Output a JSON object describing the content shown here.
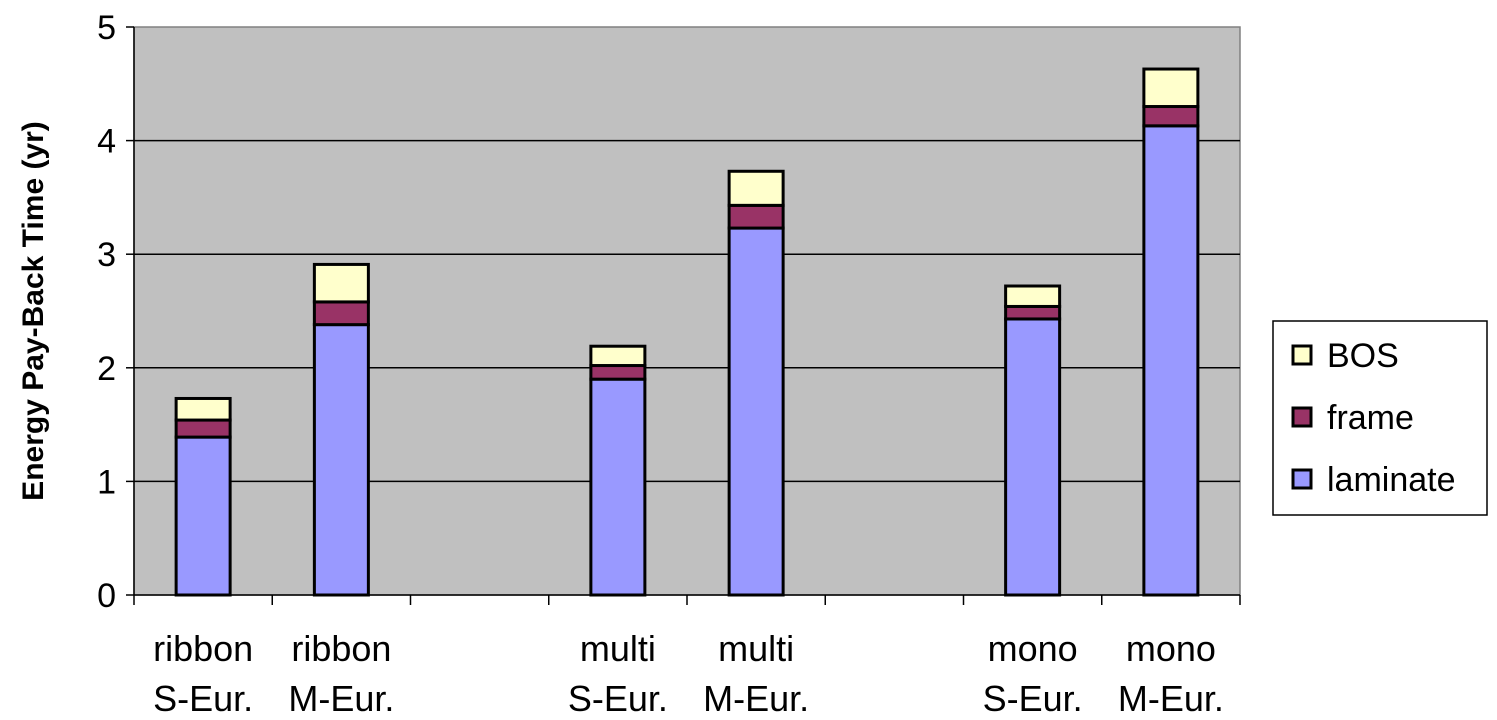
{
  "chart_data": {
    "type": "bar",
    "stacked": true,
    "ylabel": "Energy Pay-Back Time (yr)",
    "xlabel": "",
    "ylim": [
      0,
      5
    ],
    "yticks": [
      "0",
      "1",
      "2",
      "3",
      "4",
      "5"
    ],
    "grid": true,
    "legend_position": "right",
    "categories": [
      {
        "line1": "ribbon",
        "line2": "S-Eur."
      },
      {
        "line1": "ribbon",
        "line2": "M-Eur."
      },
      {
        "line1": "multi",
        "line2": "S-Eur."
      },
      {
        "line1": "multi",
        "line2": "M-Eur."
      },
      {
        "line1": "mono",
        "line2": "S-Eur."
      },
      {
        "line1": "mono",
        "line2": "M-Eur."
      }
    ],
    "series": [
      {
        "name": "laminate",
        "color": "#9999ff",
        "values": [
          1.39,
          2.38,
          1.9,
          3.23,
          2.43,
          4.13
        ]
      },
      {
        "name": "frame",
        "color": "#993366",
        "values": [
          0.15,
          0.2,
          0.12,
          0.2,
          0.11,
          0.17
        ]
      },
      {
        "name": "BOS",
        "color": "#ffffcc",
        "values": [
          0.19,
          0.33,
          0.17,
          0.3,
          0.18,
          0.33
        ]
      }
    ],
    "legend": [
      "BOS",
      "frame",
      "laminate"
    ],
    "colors": {
      "plot_background": "#c0c0c0",
      "gridline": "#000000"
    }
  }
}
